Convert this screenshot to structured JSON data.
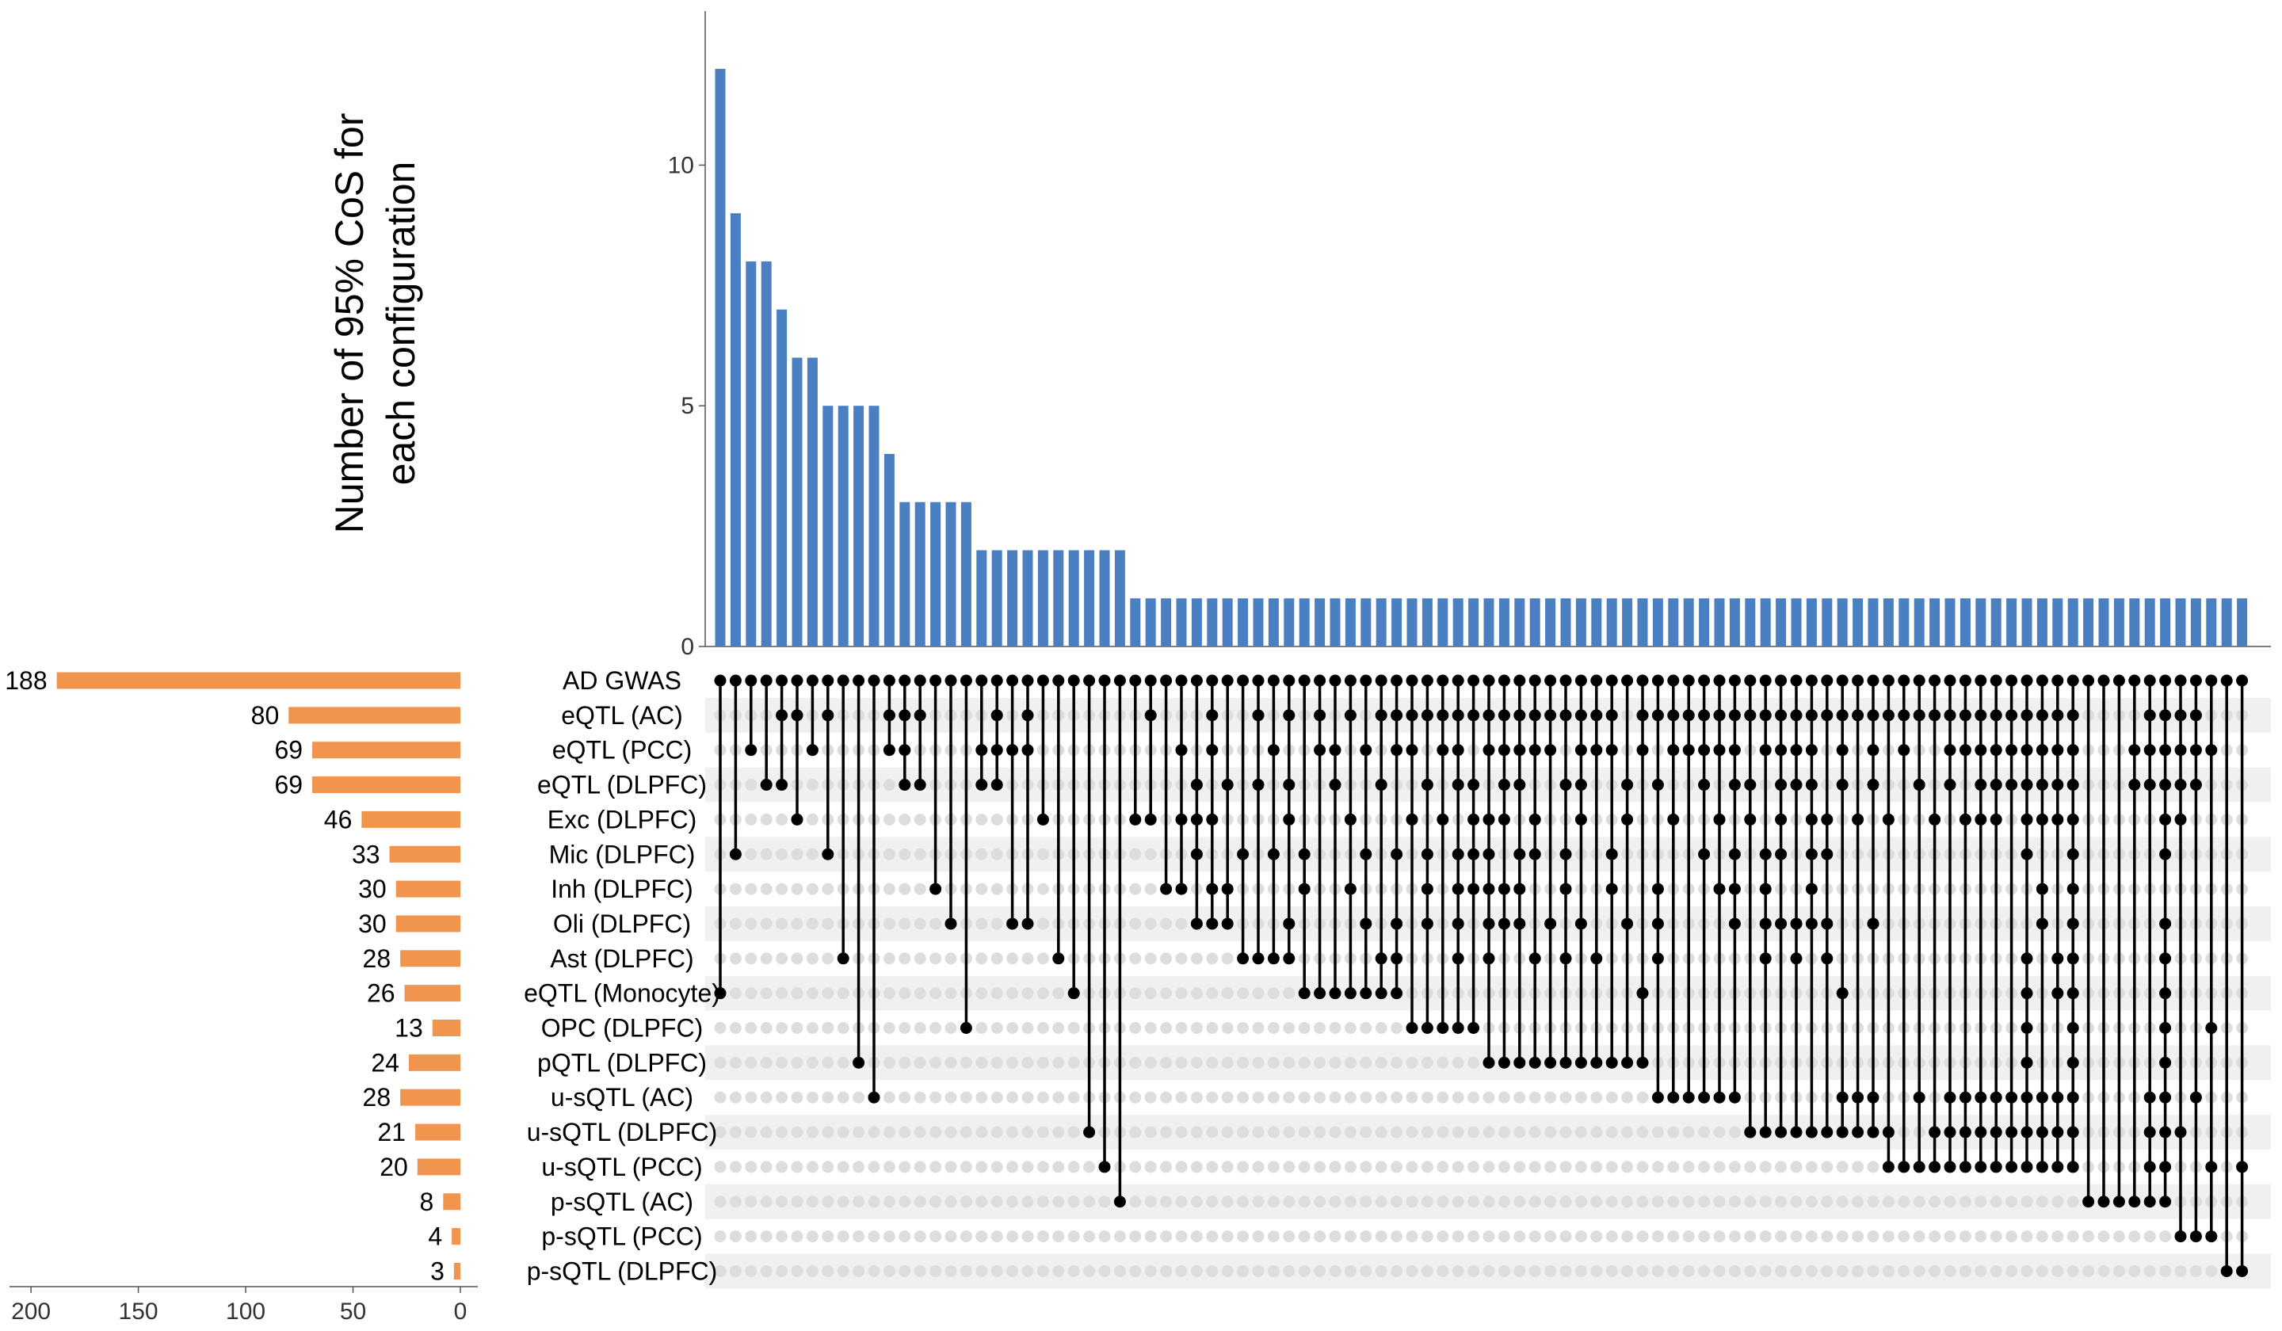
{
  "chart_data": {
    "type": "upset",
    "colors": {
      "intersection_bar": "#4a7fc1",
      "set_size_bar": "#f0944e",
      "dot_on": "#000000",
      "dot_off": "#dddddd",
      "stripe": "#f0f0f0"
    },
    "intersection_plot": {
      "ylabel": [
        "Number of 95% CoS for",
        "each configuration"
      ],
      "yticks": [
        0,
        5,
        10
      ],
      "ylim": [
        0,
        13.2
      ],
      "values": [
        12,
        9,
        8,
        8,
        7,
        6,
        6,
        5,
        5,
        5,
        5,
        4,
        3,
        3,
        3,
        3,
        3,
        2,
        2,
        2,
        2,
        2,
        2,
        2,
        2,
        2,
        2,
        1,
        1,
        1,
        1,
        1,
        1,
        1,
        1,
        1,
        1,
        1,
        1,
        1,
        1,
        1,
        1,
        1,
        1,
        1,
        1,
        1,
        1,
        1,
        1,
        1,
        1,
        1,
        1,
        1,
        1,
        1,
        1,
        1,
        1,
        1,
        1,
        1,
        1,
        1,
        1,
        1,
        1,
        1,
        1,
        1,
        1,
        1,
        1,
        1,
        1,
        1,
        1,
        1,
        1,
        1,
        1,
        1,
        1,
        1,
        1,
        1,
        1,
        1,
        1,
        1,
        1,
        1,
        1,
        1,
        1,
        1,
        1,
        1
      ]
    },
    "set_size_plot": {
      "xticks": [
        200,
        150,
        100,
        50,
        0
      ],
      "xlim": [
        0,
        210
      ]
    },
    "sets": [
      {
        "name": "AD GWAS",
        "size": 188
      },
      {
        "name": "eQTL (AC)",
        "size": 80
      },
      {
        "name": "eQTL (PCC)",
        "size": 69
      },
      {
        "name": "eQTL (DLPFC)",
        "size": 69
      },
      {
        "name": "Exc (DLPFC)",
        "size": 46
      },
      {
        "name": "Mic (DLPFC)",
        "size": 33
      },
      {
        "name": "Inh (DLPFC)",
        "size": 30
      },
      {
        "name": "Oli (DLPFC)",
        "size": 30
      },
      {
        "name": "Ast (DLPFC)",
        "size": 28
      },
      {
        "name": "eQTL (Monocyte)",
        "size": 26
      },
      {
        "name": "OPC (DLPFC)",
        "size": 13
      },
      {
        "name": "pQTL (DLPFC)",
        "size": 24
      },
      {
        "name": "u-sQTL (AC)",
        "size": 28
      },
      {
        "name": "u-sQTL (DLPFC)",
        "size": 21
      },
      {
        "name": "u-sQTL (PCC)",
        "size": 20
      },
      {
        "name": "p-sQTL (AC)",
        "size": 8
      },
      {
        "name": "p-sQTL (PCC)",
        "size": 4
      },
      {
        "name": "p-sQTL (DLPFC)",
        "size": 3
      }
    ],
    "membership": [
      [
        0,
        9
      ],
      [
        0,
        5
      ],
      [
        0,
        2
      ],
      [
        0,
        3
      ],
      [
        0,
        1,
        3
      ],
      [
        0,
        1,
        4
      ],
      [
        0,
        2
      ],
      [
        0,
        1,
        5
      ],
      [
        0,
        8
      ],
      [
        0,
        11
      ],
      [
        0,
        12
      ],
      [
        0,
        1,
        2
      ],
      [
        0,
        1,
        2,
        3
      ],
      [
        0,
        1,
        3
      ],
      [
        0,
        6
      ],
      [
        0,
        7
      ],
      [
        0,
        10
      ],
      [
        0,
        2,
        3
      ],
      [
        0,
        1,
        2,
        3
      ],
      [
        0,
        2,
        7
      ],
      [
        0,
        1,
        2,
        7
      ],
      [
        0,
        4
      ],
      [
        0,
        8
      ],
      [
        0,
        9
      ],
      [
        0,
        13
      ],
      [
        0,
        14
      ],
      [
        0,
        15
      ],
      [
        0,
        4
      ],
      [
        0,
        1,
        4
      ],
      [
        0,
        6
      ],
      [
        0,
        2,
        4,
        6
      ],
      [
        0,
        3,
        4,
        5,
        7
      ],
      [
        0,
        1,
        2,
        4,
        6,
        7
      ],
      [
        0,
        3,
        6,
        7
      ],
      [
        0,
        5,
        8
      ],
      [
        0,
        1,
        3,
        8
      ],
      [
        0,
        2,
        5,
        8
      ],
      [
        0,
        1,
        3,
        4,
        7,
        8
      ],
      [
        0,
        5,
        6,
        9
      ],
      [
        0,
        1,
        2,
        9
      ],
      [
        0,
        2,
        3,
        9
      ],
      [
        0,
        1,
        4,
        6,
        9
      ],
      [
        0,
        2,
        5,
        7,
        9
      ],
      [
        0,
        1,
        3,
        8,
        9
      ],
      [
        0,
        1,
        2,
        5,
        7,
        8,
        9
      ],
      [
        0,
        1,
        2,
        4,
        10
      ],
      [
        0,
        1,
        3,
        5,
        6,
        7,
        10
      ],
      [
        0,
        1,
        2,
        4,
        10
      ],
      [
        0,
        1,
        2,
        3,
        5,
        6,
        7,
        8,
        10
      ],
      [
        0,
        1,
        3,
        4,
        5,
        6,
        10
      ],
      [
        0,
        1,
        2,
        4,
        5,
        6,
        7,
        8,
        11
      ],
      [
        0,
        1,
        2,
        3,
        4,
        6,
        7,
        11
      ],
      [
        0,
        1,
        2,
        3,
        5,
        6,
        7,
        11
      ],
      [
        0,
        1,
        2,
        4,
        5,
        8,
        11
      ],
      [
        0,
        1,
        2,
        7,
        11
      ],
      [
        0,
        1,
        3,
        5,
        6,
        8,
        11
      ],
      [
        0,
        1,
        2,
        3,
        4,
        7,
        11
      ],
      [
        0,
        1,
        2,
        8,
        11
      ],
      [
        0,
        1,
        2,
        5,
        6,
        11
      ],
      [
        0,
        3,
        4,
        7,
        11
      ],
      [
        0,
        1,
        2,
        9,
        11
      ],
      [
        0,
        1,
        3,
        6,
        7,
        8,
        12
      ],
      [
        0,
        1,
        2,
        4,
        12
      ],
      [
        0,
        1,
        2,
        12
      ],
      [
        0,
        1,
        2,
        3,
        5,
        12
      ],
      [
        0,
        1,
        2,
        4,
        6,
        12
      ],
      [
        0,
        1,
        2,
        3,
        5,
        6,
        7,
        12
      ],
      [
        0,
        1,
        3,
        4,
        13
      ],
      [
        0,
        1,
        2,
        5,
        6,
        7,
        8,
        13
      ],
      [
        0,
        1,
        2,
        3,
        4,
        5,
        7,
        13
      ],
      [
        0,
        1,
        2,
        3,
        7,
        8,
        13
      ],
      [
        0,
        1,
        2,
        3,
        4,
        5,
        6,
        7,
        13
      ],
      [
        0,
        1,
        4,
        5,
        7,
        8,
        13
      ],
      [
        0,
        1,
        2,
        3,
        9,
        12,
        13
      ],
      [
        0,
        1,
        4,
        12,
        13
      ],
      [
        0,
        1,
        2,
        3,
        7,
        12,
        13
      ],
      [
        0,
        1,
        4,
        13,
        14
      ],
      [
        0,
        1,
        2,
        14
      ],
      [
        0,
        1,
        3,
        12,
        14
      ],
      [
        0,
        1,
        4,
        13,
        14
      ],
      [
        0,
        1,
        2,
        3,
        12,
        13,
        14
      ],
      [
        0,
        1,
        2,
        4,
        12,
        13,
        14
      ],
      [
        0,
        1,
        2,
        3,
        4,
        12,
        13,
        14
      ],
      [
        0,
        1,
        2,
        3,
        4,
        12,
        13,
        14
      ],
      [
        0,
        1,
        2,
        3,
        12,
        13,
        14
      ],
      [
        0,
        1,
        2,
        3,
        4,
        5,
        8,
        9,
        10,
        11,
        12,
        13,
        14
      ],
      [
        0,
        1,
        2,
        3,
        4,
        6,
        7,
        12,
        13,
        14
      ],
      [
        0,
        1,
        2,
        3,
        4,
        8,
        9,
        12,
        13,
        14
      ],
      [
        0,
        1,
        2,
        3,
        4,
        5,
        6,
        7,
        8,
        9,
        10,
        11,
        12,
        13,
        14
      ],
      [
        0,
        15
      ],
      [
        0,
        15
      ],
      [
        0,
        15
      ],
      [
        0,
        2,
        3,
        15
      ],
      [
        0,
        1,
        2,
        3,
        12,
        13,
        14,
        15
      ],
      [
        0,
        1,
        2,
        3,
        4,
        5,
        7,
        8,
        9,
        10,
        11,
        12,
        13,
        14,
        15
      ],
      [
        0,
        1,
        2,
        3,
        4,
        13,
        16
      ],
      [
        0,
        1,
        2,
        3,
        12,
        16
      ],
      [
        0,
        2,
        10,
        14,
        16
      ],
      [
        0,
        17
      ],
      [
        0,
        14,
        17
      ]
    ]
  }
}
